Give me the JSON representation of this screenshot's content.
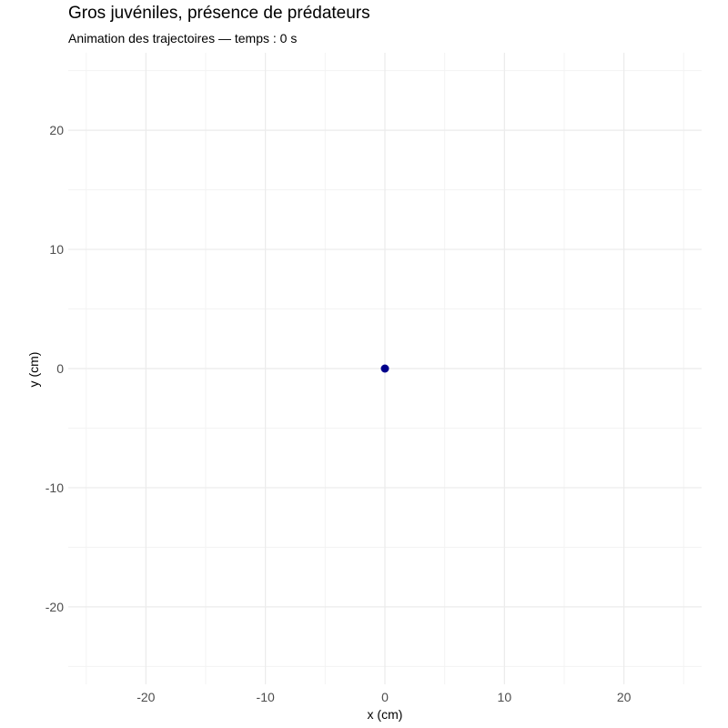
{
  "chart_data": {
    "type": "scatter",
    "title": "Gros juvéniles, présence de prédateurs",
    "subtitle": "Animation des trajectoires — temps : 0 s",
    "xlabel": "x (cm)",
    "ylabel": "y (cm)",
    "xlim": [
      -26.5,
      26.5
    ],
    "ylim": [
      -26.5,
      26.5
    ],
    "x_ticks": [
      -20,
      -10,
      0,
      10,
      20
    ],
    "y_ticks": [
      -20,
      -10,
      0,
      10,
      20
    ],
    "x_minor": [
      -25,
      -15,
      -5,
      5,
      15,
      25
    ],
    "y_minor": [
      -25,
      -15,
      -5,
      5,
      15,
      25
    ],
    "grid": true,
    "points": [
      {
        "x": 0,
        "y": 0
      }
    ],
    "colors": {
      "point": "#00008b",
      "grid_major": "#ebebeb",
      "grid_minor": "#f3f3f3"
    }
  }
}
